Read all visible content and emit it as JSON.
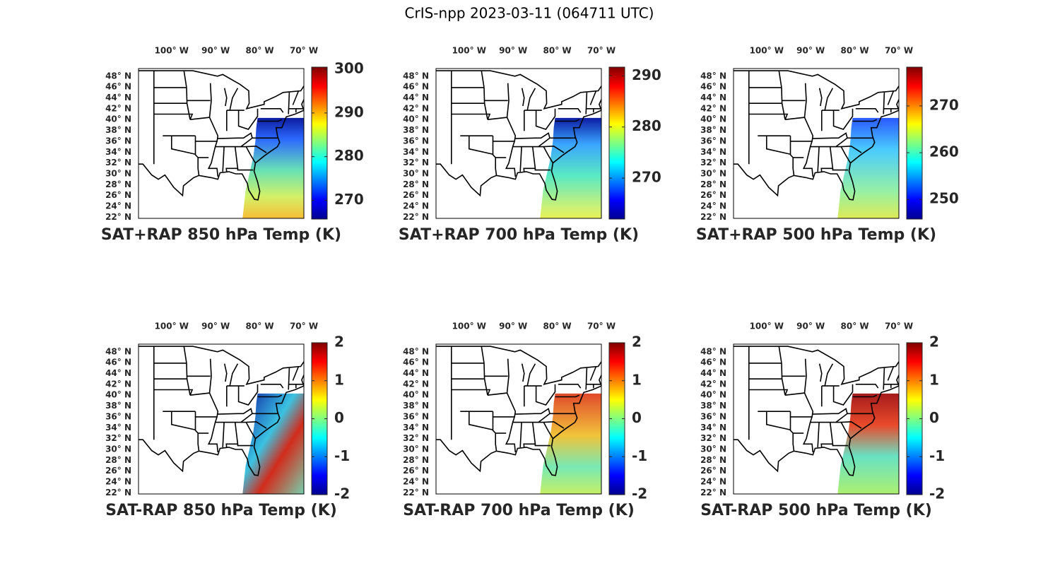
{
  "title": "CrIS-npp 2023-03-11 (064711 UTC)",
  "panels": [
    {
      "caption": "SAT+RAP 850 hPa Temp (K)",
      "lon_lim": [
        -107.5,
        -70
      ],
      "lat_lim": [
        21.8,
        49.4
      ],
      "lon_ticks": [
        {
          "value": -100,
          "label": "100° W"
        },
        {
          "value": -90,
          "label": "90° W"
        },
        {
          "value": -80,
          "label": "80° W"
        },
        {
          "value": -70,
          "label": "70° W"
        }
      ],
      "lat_ticks": [
        {
          "value": 22,
          "label": "22° N"
        },
        {
          "value": 24,
          "label": "24° N"
        },
        {
          "value": 26,
          "label": "26° N"
        },
        {
          "value": 28,
          "label": "28° N"
        },
        {
          "value": 30,
          "label": "30° N"
        },
        {
          "value": 32,
          "label": "32° N"
        },
        {
          "value": 34,
          "label": "34° N"
        },
        {
          "value": 36,
          "label": "36° N"
        },
        {
          "value": 38,
          "label": "38° N"
        },
        {
          "value": 40,
          "label": "40° N"
        },
        {
          "value": 42,
          "label": "42° N"
        },
        {
          "value": 44,
          "label": "44° N"
        },
        {
          "value": 46,
          "label": "46° N"
        },
        {
          "value": 48,
          "label": "48° N"
        }
      ],
      "colorbar": {
        "lim": [
          265.7,
          300.5
        ],
        "ticks": [
          270,
          280,
          290,
          300
        ]
      }
    },
    {
      "caption": "SAT+RAP 700 hPa Temp (K)",
      "lon_lim": [
        -107.5,
        -70
      ],
      "lat_lim": [
        21.8,
        49.4
      ],
      "lon_ticks": [
        {
          "value": -100,
          "label": "100° W"
        },
        {
          "value": -90,
          "label": "90° W"
        },
        {
          "value": -80,
          "label": "80° W"
        },
        {
          "value": -70,
          "label": "70° W"
        }
      ],
      "lat_ticks": [
        {
          "value": 22,
          "label": "22° N"
        },
        {
          "value": 24,
          "label": "24° N"
        },
        {
          "value": 26,
          "label": "26° N"
        },
        {
          "value": 28,
          "label": "28° N"
        },
        {
          "value": 30,
          "label": "30° N"
        },
        {
          "value": 32,
          "label": "32° N"
        },
        {
          "value": 34,
          "label": "34° N"
        },
        {
          "value": 36,
          "label": "36° N"
        },
        {
          "value": 38,
          "label": "38° N"
        },
        {
          "value": 40,
          "label": "40° N"
        },
        {
          "value": 42,
          "label": "42° N"
        },
        {
          "value": 44,
          "label": "44° N"
        },
        {
          "value": 46,
          "label": "46° N"
        },
        {
          "value": 48,
          "label": "48° N"
        }
      ],
      "colorbar": {
        "lim": [
          262,
          291.7
        ],
        "ticks": [
          270,
          280,
          290
        ]
      }
    },
    {
      "caption": "SAT+RAP 500 hPa Temp (K)",
      "lon_lim": [
        -107.5,
        -70
      ],
      "lat_lim": [
        21.8,
        49.4
      ],
      "lon_ticks": [
        {
          "value": -100,
          "label": "100° W"
        },
        {
          "value": -90,
          "label": "90° W"
        },
        {
          "value": -80,
          "label": "80° W"
        },
        {
          "value": -70,
          "label": "70° W"
        }
      ],
      "lat_ticks": [
        {
          "value": 22,
          "label": "22° N"
        },
        {
          "value": 24,
          "label": "24° N"
        },
        {
          "value": 26,
          "label": "26° N"
        },
        {
          "value": 28,
          "label": "28° N"
        },
        {
          "value": 30,
          "label": "30° N"
        },
        {
          "value": 32,
          "label": "32° N"
        },
        {
          "value": 34,
          "label": "34° N"
        },
        {
          "value": 36,
          "label": "36° N"
        },
        {
          "value": 38,
          "label": "38° N"
        },
        {
          "value": 40,
          "label": "40° N"
        },
        {
          "value": 42,
          "label": "42° N"
        },
        {
          "value": 44,
          "label": "44° N"
        },
        {
          "value": 46,
          "label": "46° N"
        },
        {
          "value": 48,
          "label": "48° N"
        }
      ],
      "colorbar": {
        "lim": [
          245.8,
          278.3
        ],
        "ticks": [
          250,
          260,
          270
        ]
      }
    },
    {
      "caption": "SAT-RAP 850 hPa Temp (K)",
      "lon_lim": [
        -107.5,
        -70
      ],
      "lat_lim": [
        21.8,
        49.4
      ],
      "lon_ticks": [
        {
          "value": -100,
          "label": "100° W"
        },
        {
          "value": -90,
          "label": "90° W"
        },
        {
          "value": -80,
          "label": "80° W"
        },
        {
          "value": -70,
          "label": "70° W"
        }
      ],
      "lat_ticks": [
        {
          "value": 22,
          "label": "22° N"
        },
        {
          "value": 24,
          "label": "24° N"
        },
        {
          "value": 26,
          "label": "26° N"
        },
        {
          "value": 28,
          "label": "28° N"
        },
        {
          "value": 30,
          "label": "30° N"
        },
        {
          "value": 32,
          "label": "32° N"
        },
        {
          "value": 34,
          "label": "34° N"
        },
        {
          "value": 36,
          "label": "36° N"
        },
        {
          "value": 38,
          "label": "38° N"
        },
        {
          "value": 40,
          "label": "40° N"
        },
        {
          "value": 42,
          "label": "42° N"
        },
        {
          "value": 44,
          "label": "44° N"
        },
        {
          "value": 46,
          "label": "46° N"
        },
        {
          "value": 48,
          "label": "48° N"
        }
      ],
      "colorbar": {
        "lim": [
          -2,
          2
        ],
        "ticks": [
          -2,
          -1,
          0,
          1,
          2
        ]
      }
    },
    {
      "caption": "SAT-RAP 700 hPa Temp (K)",
      "lon_lim": [
        -107.5,
        -70
      ],
      "lat_lim": [
        21.8,
        49.4
      ],
      "lon_ticks": [
        {
          "value": -100,
          "label": "100° W"
        },
        {
          "value": -90,
          "label": "90° W"
        },
        {
          "value": -80,
          "label": "80° W"
        },
        {
          "value": -70,
          "label": "70° W"
        }
      ],
      "lat_ticks": [
        {
          "value": 22,
          "label": "22° N"
        },
        {
          "value": 24,
          "label": "24° N"
        },
        {
          "value": 26,
          "label": "26° N"
        },
        {
          "value": 28,
          "label": "28° N"
        },
        {
          "value": 30,
          "label": "30° N"
        },
        {
          "value": 32,
          "label": "32° N"
        },
        {
          "value": 34,
          "label": "34° N"
        },
        {
          "value": 36,
          "label": "36° N"
        },
        {
          "value": 38,
          "label": "38° N"
        },
        {
          "value": 40,
          "label": "40° N"
        },
        {
          "value": 42,
          "label": "42° N"
        },
        {
          "value": 44,
          "label": "44° N"
        },
        {
          "value": 46,
          "label": "46° N"
        },
        {
          "value": 48,
          "label": "48° N"
        }
      ],
      "colorbar": {
        "lim": [
          -2,
          2
        ],
        "ticks": [
          -2,
          -1,
          0,
          1,
          2
        ]
      }
    },
    {
      "caption": "SAT-RAP 500 hPa Temp (K)",
      "lon_lim": [
        -107.5,
        -70
      ],
      "lat_lim": [
        21.8,
        49.4
      ],
      "lon_ticks": [
        {
          "value": -100,
          "label": "100° W"
        },
        {
          "value": -90,
          "label": "90° W"
        },
        {
          "value": -80,
          "label": "80° W"
        },
        {
          "value": -70,
          "label": "70° W"
        }
      ],
      "lat_ticks": [
        {
          "value": 22,
          "label": "22° N"
        },
        {
          "value": 24,
          "label": "24° N"
        },
        {
          "value": 26,
          "label": "26° N"
        },
        {
          "value": 28,
          "label": "28° N"
        },
        {
          "value": 30,
          "label": "30° N"
        },
        {
          "value": 32,
          "label": "32° N"
        },
        {
          "value": 34,
          "label": "34° N"
        },
        {
          "value": 36,
          "label": "36° N"
        },
        {
          "value": 38,
          "label": "38° N"
        },
        {
          "value": 40,
          "label": "40° N"
        },
        {
          "value": 42,
          "label": "42° N"
        },
        {
          "value": 44,
          "label": "44° N"
        },
        {
          "value": 46,
          "label": "46° N"
        },
        {
          "value": 48,
          "label": "48° N"
        }
      ],
      "colorbar": {
        "lim": [
          -2,
          2
        ],
        "ticks": [
          -2,
          -1,
          0,
          1,
          2
        ]
      }
    }
  ]
}
